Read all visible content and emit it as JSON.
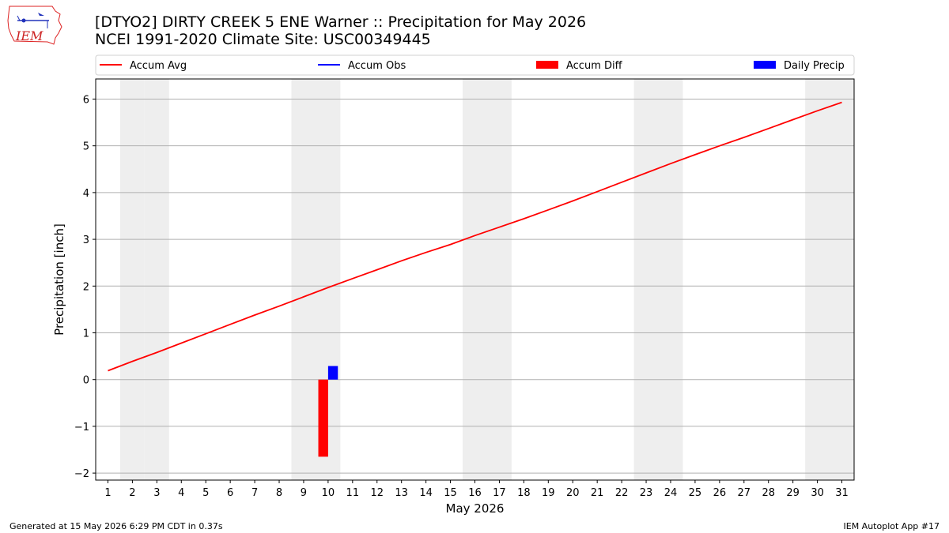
{
  "title_lines": [
    "[DTYO2] DIRTY CREEK 5 ENE Warner :: Precipitation for May 2026",
    "NCEI 1991-2020 Climate Site: USC00349445"
  ],
  "footer": {
    "left": "Generated at 15 May 2026 6:29 PM CDT in 0.37s",
    "right": "IEM Autoplot App #17"
  },
  "logo": {
    "text": "IEM"
  },
  "colors": {
    "avg": "#ff0000",
    "obs": "#0000ff",
    "diff": "#ff0000",
    "daily": "#0000ff",
    "weekend_shade": "#eeeeee",
    "grid": "#b0b0b0"
  },
  "chart_data": {
    "type": "line",
    "xlabel": "May 2026",
    "ylabel": "Precipitation [inch]",
    "xlim": [
      0.5,
      31.5
    ],
    "ylim": [
      -2.15,
      6.43
    ],
    "grid": "horizontal",
    "legend_position": "top",
    "x_ticks": [
      1,
      2,
      3,
      4,
      5,
      6,
      7,
      8,
      9,
      10,
      11,
      12,
      13,
      14,
      15,
      16,
      17,
      18,
      19,
      20,
      21,
      22,
      23,
      24,
      25,
      26,
      27,
      28,
      29,
      30,
      31
    ],
    "y_ticks": [
      -2,
      -1,
      0,
      1,
      2,
      3,
      4,
      5,
      6
    ],
    "weekend_days": [
      2,
      3,
      9,
      10,
      16,
      17,
      23,
      24,
      30,
      31
    ],
    "legend": [
      {
        "label": "Accum Avg",
        "kind": "line",
        "color_key": "avg"
      },
      {
        "label": "Accum Obs",
        "kind": "line",
        "color_key": "obs"
      },
      {
        "label": "Accum Diff",
        "kind": "bar",
        "color_key": "diff"
      },
      {
        "label": "Daily Precip",
        "kind": "bar",
        "color_key": "daily"
      }
    ],
    "accum_avg": {
      "x": [
        1,
        2,
        3,
        4,
        5,
        6,
        7,
        8,
        9,
        10,
        11,
        12,
        13,
        14,
        15,
        16,
        17,
        18,
        19,
        20,
        21,
        22,
        23,
        24,
        25,
        26,
        27,
        28,
        29,
        30,
        31
      ],
      "y": [
        0.19,
        0.39,
        0.58,
        0.78,
        0.98,
        1.18,
        1.38,
        1.57,
        1.77,
        1.97,
        2.16,
        2.35,
        2.54,
        2.72,
        2.89,
        3.08,
        3.26,
        3.44,
        3.63,
        3.82,
        4.02,
        4.22,
        4.42,
        4.62,
        4.81,
        5.0,
        5.18,
        5.37,
        5.56,
        5.75,
        5.93
      ]
    },
    "accum_diff": [
      {
        "x": 10,
        "value": -1.65
      }
    ],
    "daily_precip": [
      {
        "x": 10,
        "value": 0.29
      }
    ]
  }
}
